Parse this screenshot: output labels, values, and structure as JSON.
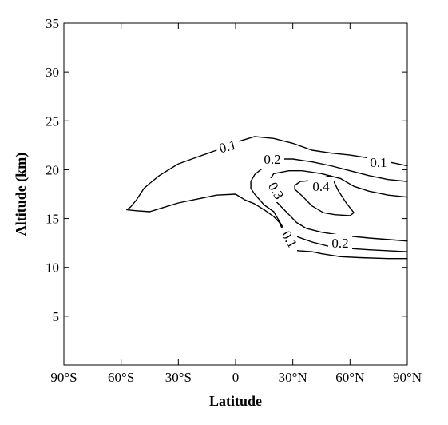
{
  "chart_data": {
    "type": "contour",
    "title": "",
    "xlabel": "Latitude",
    "ylabel": "Altitude (km)",
    "xlim": [
      -90,
      90
    ],
    "ylim": [
      0,
      35
    ],
    "x_ticks": [
      {
        "value": -90,
        "label": "90°S"
      },
      {
        "value": -60,
        "label": "60°S"
      },
      {
        "value": -30,
        "label": "30°S"
      },
      {
        "value": 0,
        "label": "0"
      },
      {
        "value": 30,
        "label": "30°N"
      },
      {
        "value": 60,
        "label": "60°N"
      },
      {
        "value": 90,
        "label": "90°N"
      }
    ],
    "y_ticks": [
      {
        "value": 5,
        "label": "5"
      },
      {
        "value": 10,
        "label": "10"
      },
      {
        "value": 15,
        "label": "15"
      },
      {
        "value": 20,
        "label": "20"
      },
      {
        "value": 25,
        "label": "25"
      },
      {
        "value": 30,
        "label": "30"
      },
      {
        "value": 35,
        "label": "35"
      }
    ],
    "grid": false,
    "contours": [
      {
        "level": "0.1",
        "points": [
          [
            90,
            20.4
          ],
          [
            80,
            20.8
          ],
          [
            70,
            21.2
          ],
          [
            60,
            21.5
          ],
          [
            50,
            21.7
          ],
          [
            40,
            22.0
          ],
          [
            30,
            22.7
          ],
          [
            20,
            23.2
          ],
          [
            10,
            23.4
          ],
          [
            0,
            22.8
          ],
          [
            -10,
            22.0
          ],
          [
            -20,
            21.3
          ],
          [
            -30,
            20.6
          ],
          [
            -35,
            20.0
          ],
          [
            -40,
            19.4
          ],
          [
            -45,
            18.6
          ],
          [
            -48,
            18.1
          ],
          [
            -52,
            16.9
          ],
          [
            -55,
            16.2
          ],
          [
            -57,
            15.9
          ],
          [
            -52,
            15.8
          ],
          [
            -45,
            15.7
          ],
          [
            -40,
            16.0
          ],
          [
            -30,
            16.6
          ],
          [
            -20,
            17.0
          ],
          [
            -10,
            17.4
          ],
          [
            0,
            17.5
          ],
          [
            5,
            16.9
          ],
          [
            10,
            16.5
          ],
          [
            15,
            15.9
          ],
          [
            20,
            15.2
          ],
          [
            23,
            14.6
          ],
          [
            25,
            13.7
          ],
          [
            27,
            12.3
          ],
          [
            30,
            11.8
          ],
          [
            33,
            11.7
          ],
          [
            40,
            11.6
          ],
          [
            45,
            11.4
          ],
          [
            55,
            11.1
          ],
          [
            65,
            11.0
          ],
          [
            80,
            10.9
          ],
          [
            90,
            10.9
          ]
        ]
      },
      {
        "level": "0.2",
        "points": [
          [
            90,
            18.8
          ],
          [
            80,
            19.0
          ],
          [
            70,
            19.4
          ],
          [
            60,
            19.9
          ],
          [
            50,
            20.4
          ],
          [
            40,
            20.8
          ],
          [
            30,
            21.1
          ],
          [
            20,
            21.1
          ],
          [
            15,
            20.3
          ],
          [
            10,
            19.5
          ],
          [
            8,
            18.8
          ],
          [
            8,
            18.1
          ],
          [
            10,
            17.5
          ],
          [
            15,
            16.4
          ],
          [
            20,
            15.7
          ],
          [
            23,
            14.7
          ],
          [
            26,
            13.7
          ],
          [
            30,
            13.3
          ],
          [
            40,
            12.6
          ],
          [
            50,
            12.1
          ],
          [
            55,
            12.0
          ],
          [
            70,
            11.8
          ],
          [
            90,
            11.6
          ]
        ]
      },
      {
        "level": "0.3",
        "points": [
          [
            90,
            17.2
          ],
          [
            80,
            17.4
          ],
          [
            70,
            17.8
          ],
          [
            62,
            18.3
          ],
          [
            55,
            19.1
          ],
          [
            45,
            19.6
          ],
          [
            35,
            19.9
          ],
          [
            28,
            19.9
          ],
          [
            20,
            19.6
          ],
          [
            18,
            19.0
          ],
          [
            18,
            18.0
          ],
          [
            20,
            17.0
          ],
          [
            24,
            16.2
          ],
          [
            28,
            15.4
          ],
          [
            32,
            14.6
          ],
          [
            37,
            14.0
          ],
          [
            45,
            13.6
          ],
          [
            55,
            13.3
          ],
          [
            70,
            13.0
          ],
          [
            90,
            12.7
          ]
        ]
      },
      {
        "level": "0.4",
        "points": [
          [
            50,
            19.4
          ],
          [
            40,
            18.9
          ],
          [
            34,
            18.8
          ],
          [
            31,
            18.4
          ],
          [
            31,
            18.0
          ],
          [
            35,
            17.3
          ],
          [
            40,
            16.3
          ],
          [
            46,
            15.6
          ],
          [
            52,
            15.4
          ],
          [
            60,
            15.3
          ],
          [
            62,
            15.6
          ],
          [
            58,
            16.6
          ],
          [
            54,
            17.8
          ],
          [
            50,
            19.4
          ]
        ]
      }
    ]
  }
}
